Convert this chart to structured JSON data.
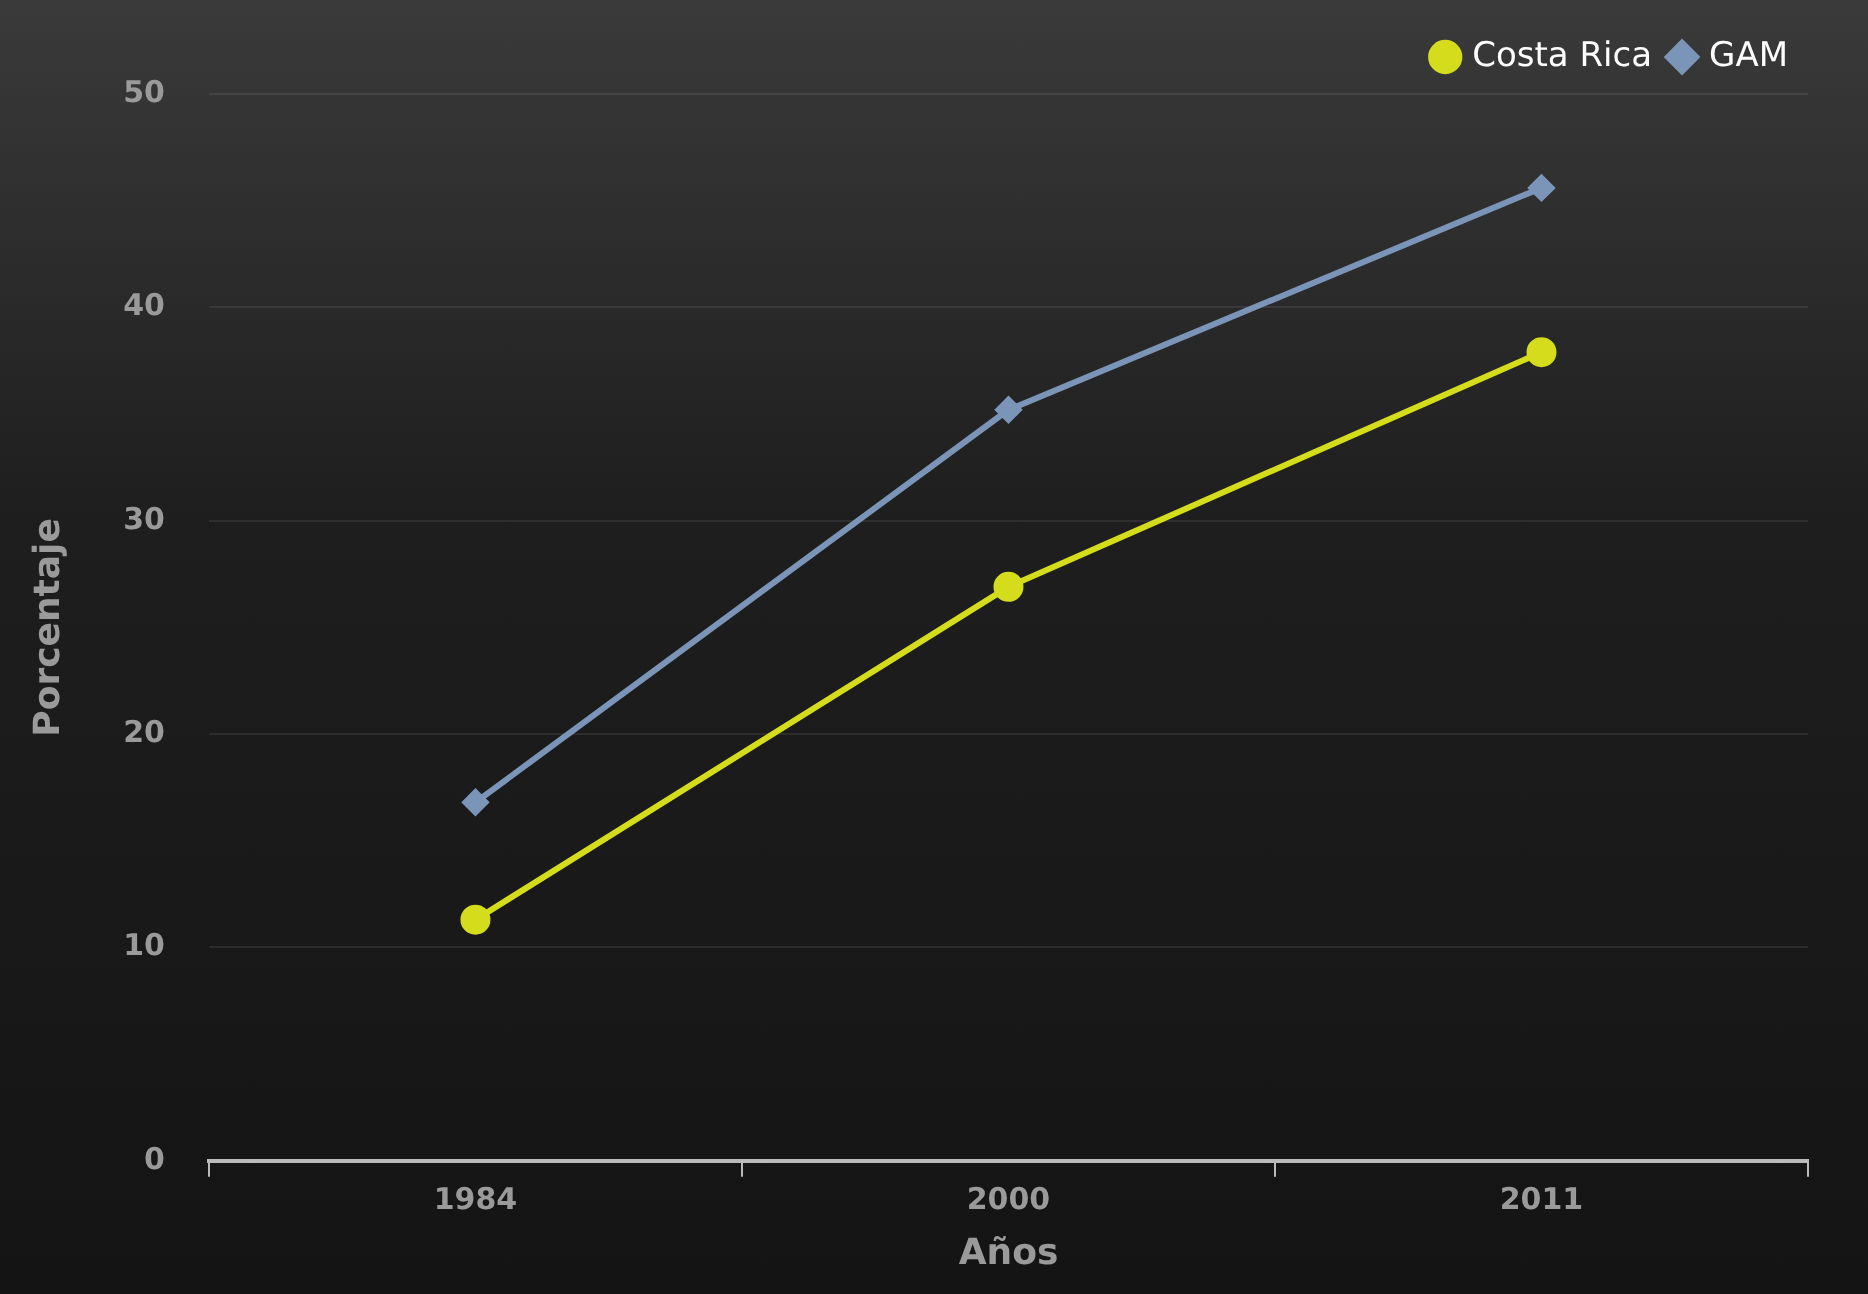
{
  "chart_data": {
    "type": "line",
    "xlabel": "Años",
    "ylabel": "Porcentaje",
    "categories": [
      "1984",
      "2000",
      "2011"
    ],
    "series": [
      {
        "name": "Costa Rica",
        "color": "#d4dc1c",
        "marker": "circle",
        "values": [
          11.3,
          26.9,
          37.9
        ]
      },
      {
        "name": "GAM",
        "color": "#7a95b8",
        "marker": "diamond",
        "values": [
          16.8,
          35.2,
          45.6
        ]
      }
    ],
    "ylim": [
      0,
      50
    ],
    "yticks": [
      0,
      10,
      20,
      30,
      40,
      50
    ],
    "grid": "y",
    "legend": "top right"
  }
}
